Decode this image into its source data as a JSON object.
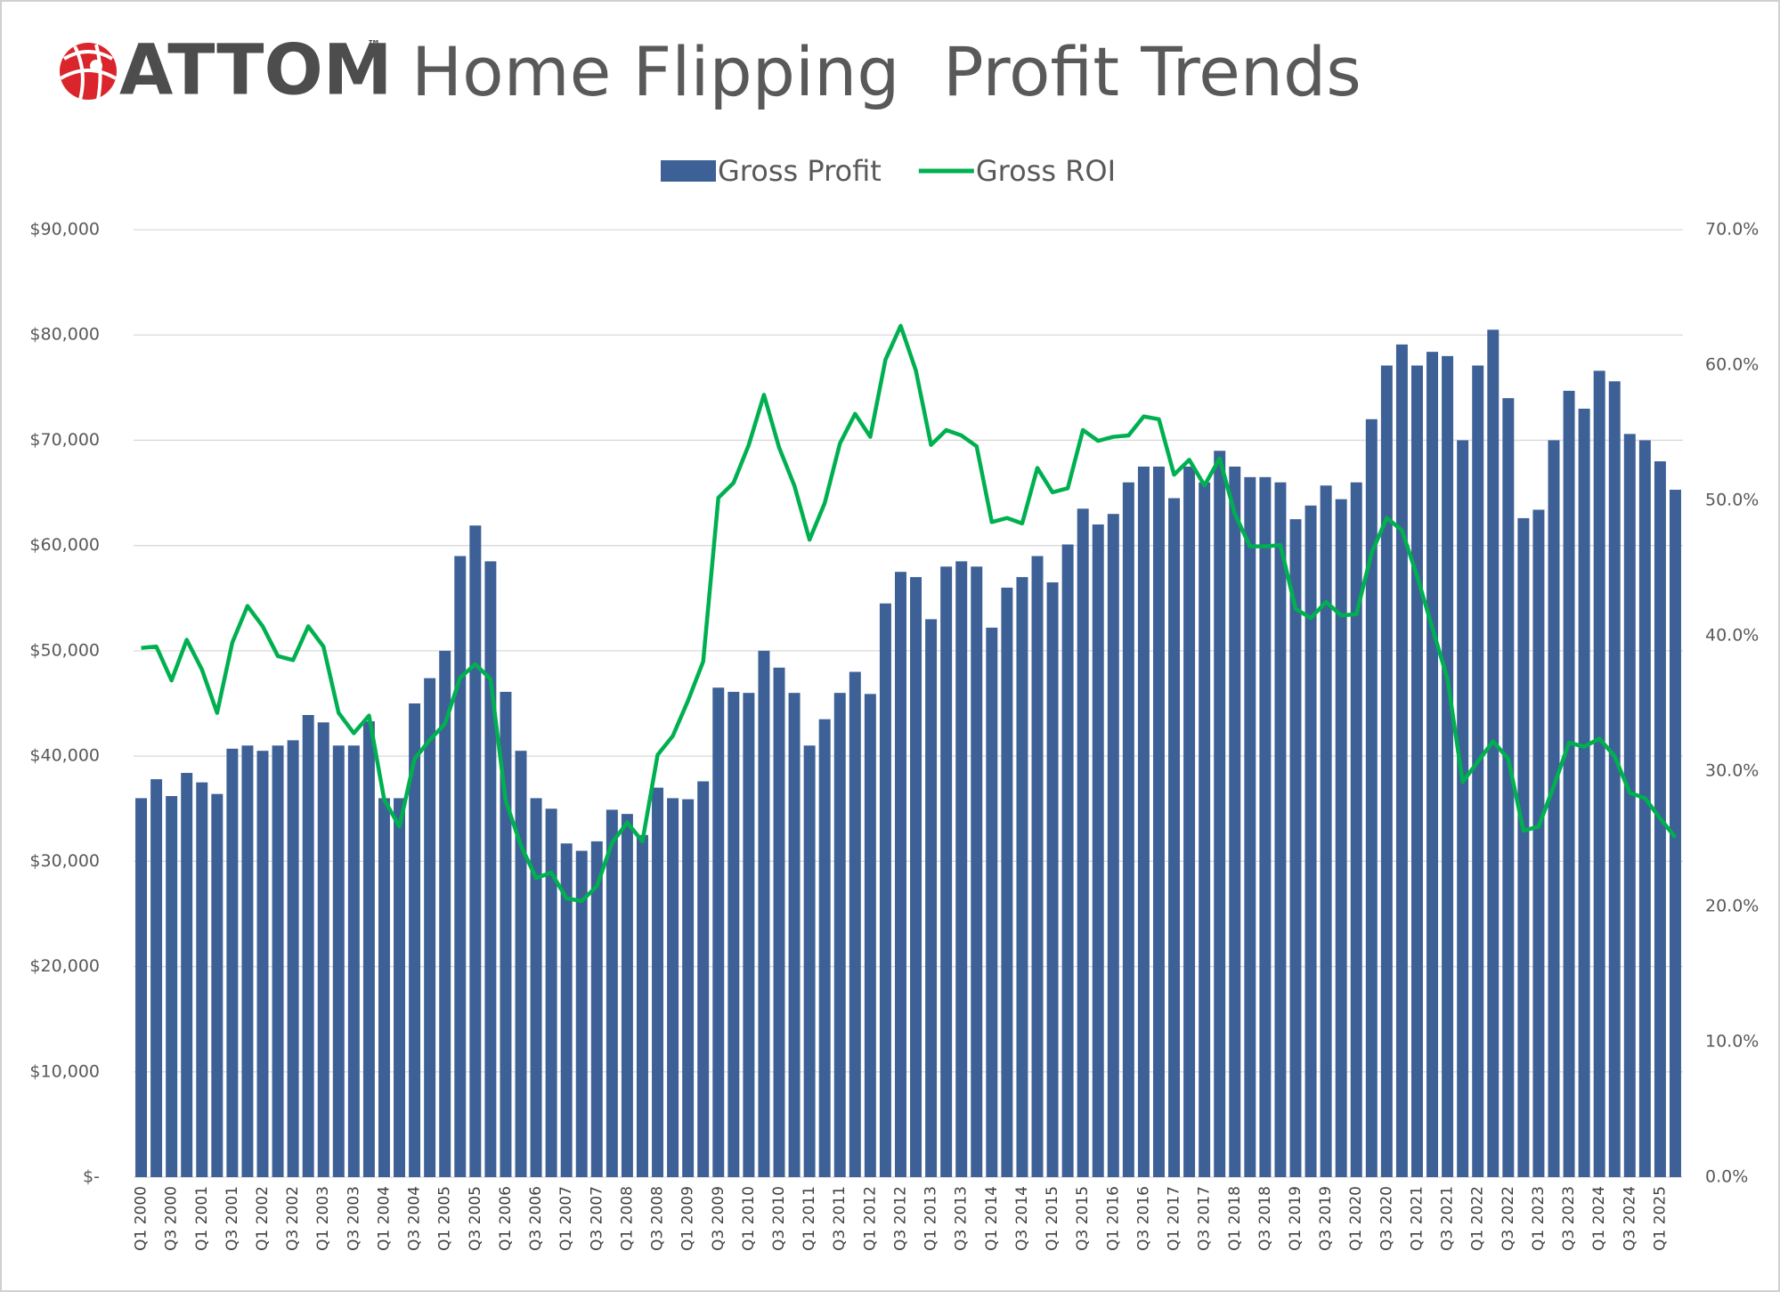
{
  "brand": {
    "name": "ATTOM",
    "mark": "™"
  },
  "chart_data": {
    "type": "bar-line",
    "title": "Home Flipping  Profit Trends",
    "categories": [
      "Q1 2000",
      null,
      "Q3 2000",
      null,
      "Q1 2001",
      null,
      "Q3 2001",
      null,
      "Q1 2002",
      null,
      "Q3 2002",
      null,
      "Q1 2003",
      null,
      "Q3 2003",
      null,
      "Q1 2004",
      null,
      "Q3 2004",
      null,
      "Q1 2005",
      null,
      "Q3 2005",
      null,
      "Q1 2006",
      null,
      "Q3 2006",
      null,
      "Q1 2007",
      null,
      "Q3 2007",
      null,
      "Q1 2008",
      null,
      "Q3 2008",
      null,
      "Q1 2009",
      null,
      "Q3 2009",
      null,
      "Q1 2010",
      null,
      "Q3 2010",
      null,
      "Q1 2011",
      null,
      "Q3 2011",
      null,
      "Q1 2012",
      null,
      "Q3 2012",
      null,
      "Q1 2013",
      null,
      "Q3 2013",
      null,
      "Q1 2014",
      null,
      "Q3 2014",
      null,
      "Q1 2015",
      null,
      "Q3 2015",
      null,
      "Q1 2016",
      null,
      "Q3 2016",
      null,
      "Q1 2017",
      null,
      "Q3 2017",
      null,
      "Q1 2018",
      null,
      "Q3 2018",
      null,
      "Q1 2019",
      null,
      "Q3 2019",
      null,
      "Q1 2020",
      null,
      "Q3 2020",
      null,
      "Q1 2021",
      null,
      "Q3 2021",
      null,
      "Q1 2022",
      null,
      "Q3 2022",
      null,
      "Q1 2023",
      null,
      "Q3 2023",
      null,
      "Q1 2024",
      null,
      "Q3 2024",
      null,
      "Q1 2025",
      null
    ],
    "series": [
      {
        "name": "Gross Profit",
        "type": "bar",
        "color": "#3d6096",
        "values": [
          36000,
          37800,
          36200,
          38400,
          37500,
          36400,
          40700,
          41000,
          40500,
          41000,
          41500,
          43900,
          43200,
          41000,
          41000,
          43300,
          36000,
          36000,
          45000,
          47400,
          50000,
          59000,
          61900,
          58500,
          46100,
          40500,
          36000,
          35000,
          31700,
          31000,
          31900,
          34900,
          34500,
          32500,
          37000,
          36000,
          35900,
          37600,
          46500,
          46100,
          46000,
          50000,
          48400,
          46000,
          41000,
          43500,
          46000,
          48000,
          45900,
          54500,
          57500,
          57000,
          53000,
          58000,
          58500,
          58000,
          52200,
          56000,
          57000,
          59000,
          56500,
          60100,
          63500,
          62000,
          63000,
          66000,
          67500,
          67500,
          64500,
          67500,
          66000,
          69000,
          67500,
          66500,
          66500,
          66000,
          62500,
          63800,
          65700,
          64400,
          66000,
          72000,
          77100,
          79100,
          77100,
          78400,
          78000,
          70000,
          77100,
          80500,
          74000,
          62600,
          63400,
          70000,
          74700,
          73000,
          76600,
          75600,
          70600,
          70000,
          68000,
          65300
        ]
      },
      {
        "name": "Gross ROI",
        "type": "line",
        "axis": "y2",
        "color": "#00b050",
        "values": [
          39.1,
          39.2,
          36.7,
          39.7,
          37.5,
          34.3,
          39.5,
          42.2,
          40.7,
          38.5,
          38.2,
          40.7,
          39.2,
          34.3,
          32.8,
          34.1,
          27.9,
          25.9,
          30.9,
          32.3,
          33.5,
          36.9,
          37.9,
          36.8,
          27.8,
          24.5,
          22.1,
          22.5,
          20.6,
          20.4,
          21.5,
          24.7,
          26.2,
          24.8,
          31.2,
          32.6,
          35.2,
          38.1,
          50.2,
          51.3,
          54.1,
          57.8,
          53.9,
          51.1,
          47.1,
          49.8,
          54.2,
          56.4,
          54.7,
          60.4,
          62.9,
          59.6,
          54.1,
          55.2,
          54.8,
          54.0,
          48.4,
          48.7,
          48.3,
          52.4,
          50.6,
          50.9,
          55.2,
          54.4,
          54.7,
          54.8,
          56.2,
          56.0,
          51.9,
          53.0,
          51.1,
          53.1,
          49.0,
          46.6,
          46.6,
          46.7,
          42.0,
          41.3,
          42.5,
          41.5,
          41.6,
          46.1,
          48.7,
          47.8,
          44.4,
          40.6,
          36.8,
          29.2,
          30.7,
          32.2,
          30.9,
          25.6,
          25.9,
          28.9,
          32.1,
          31.8,
          32.4,
          31.1,
          28.4,
          28.0,
          26.5,
          25.1
        ]
      }
    ],
    "ylim": [
      0,
      90000
    ],
    "yticks": [
      {
        "value": 0,
        "label": "$-"
      },
      {
        "value": 10000,
        "label": "$10,000"
      },
      {
        "value": 20000,
        "label": "$20,000"
      },
      {
        "value": 30000,
        "label": "$30,000"
      },
      {
        "value": 40000,
        "label": "$40,000"
      },
      {
        "value": 50000,
        "label": "$50,000"
      },
      {
        "value": 60000,
        "label": "$60,000"
      },
      {
        "value": 70000,
        "label": "$70,000"
      },
      {
        "value": 80000,
        "label": "$80,000"
      },
      {
        "value": 90000,
        "label": "$90,000"
      }
    ],
    "y2lim": [
      0,
      70
    ],
    "y2ticks": [
      {
        "value": 0,
        "label": "0.0%"
      },
      {
        "value": 10,
        "label": "10.0%"
      },
      {
        "value": 20,
        "label": "20.0%"
      },
      {
        "value": 30,
        "label": "30.0%"
      },
      {
        "value": 40,
        "label": "40.0%"
      },
      {
        "value": 50,
        "label": "50.0%"
      },
      {
        "value": 60,
        "label": "60.0%"
      },
      {
        "value": 70,
        "label": "70.0%"
      }
    ],
    "grid": true,
    "legend": "top"
  }
}
